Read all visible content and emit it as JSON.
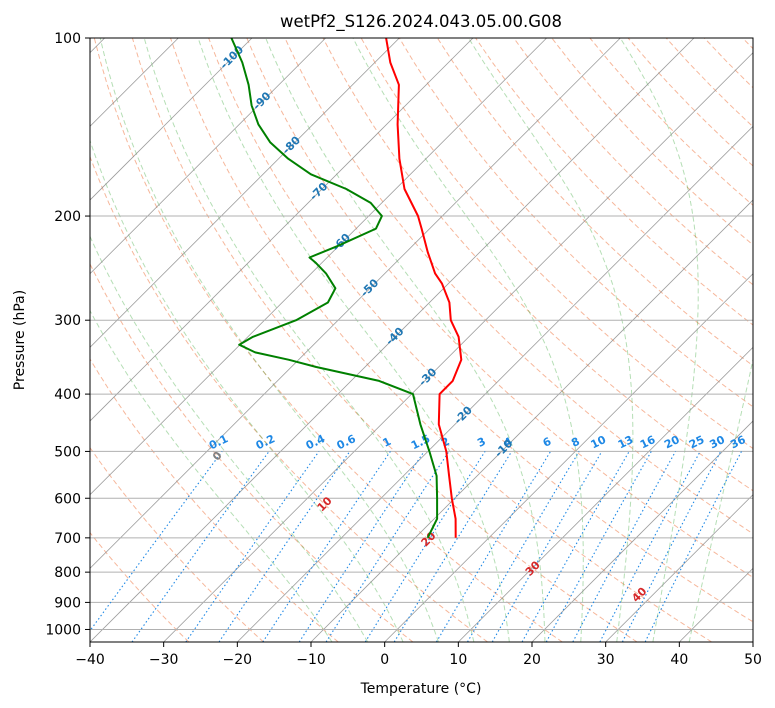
{
  "chart_data": {
    "type": "line",
    "chart_kind": "skew-T log-P diagram",
    "title": "wetPf2_S126.2024.043.05.00.G08",
    "xlabel": "Temperature (°C)",
    "ylabel": "Pressure (hPa)",
    "xlim": [
      -40,
      50
    ],
    "ylim": [
      1050,
      100
    ],
    "y_scale": "log",
    "x_ticks": [
      -40,
      -30,
      -20,
      -10,
      0,
      10,
      20,
      30,
      40,
      50
    ],
    "y_ticks": [
      1000,
      900,
      800,
      700,
      600,
      500,
      400,
      300,
      200,
      100
    ],
    "grid": true,
    "legend": "none",
    "colors": {
      "temperature": "#ff0000",
      "dewpoint": "#008000",
      "dry_adiabat": "#f4a582",
      "moist_adiabat": "#2ca02c",
      "mixing_ratio": "#1e88e5",
      "isotherm_label": "#1f77b4",
      "dry_adiabat_label": "#d62728",
      "grid": "#b0b0b0"
    },
    "series": [
      {
        "key": "temperature",
        "p": [
          700,
          650,
          600,
          550,
          500,
          450,
          400,
          380,
          350,
          320,
          300,
          280,
          260,
          250,
          230,
          210,
          200,
          180,
          160,
          140,
          120,
          110,
          100
        ],
        "t": [
          -4.5,
          -7.1,
          -10.4,
          -13.8,
          -17.5,
          -22.2,
          -26.2,
          -26.2,
          -27.9,
          -31.4,
          -34.7,
          -37.3,
          -40.9,
          -43.2,
          -47.1,
          -51.1,
          -53.3,
          -58.8,
          -63.6,
          -68.5,
          -73.7,
          -77.9,
          -81.8
        ]
      },
      {
        "key": "dewpoint",
        "p": [
          700,
          650,
          600,
          550,
          500,
          450,
          400,
          380,
          360,
          350,
          340,
          330,
          320,
          300,
          280,
          265,
          250,
          240,
          235,
          225,
          210,
          200,
          190,
          180,
          170,
          160,
          150,
          140,
          130,
          120,
          110,
          100
        ],
        "t": [
          -8.3,
          -9.6,
          -12.4,
          -15.5,
          -19.8,
          -24.7,
          -29.8,
          -36.2,
          -46.6,
          -51.3,
          -56.9,
          -60.1,
          -59.3,
          -55.7,
          -53.8,
          -54.7,
          -58.0,
          -60.8,
          -62.4,
          -60.2,
          -57.3,
          -58.2,
          -61.5,
          -66.7,
          -73.5,
          -78.7,
          -83.4,
          -87.4,
          -90.9,
          -94.1,
          -98.0,
          -102.8
        ]
      }
    ],
    "isotherm_labels": [
      "-100",
      "-90",
      "-80",
      "-70",
      "-60",
      "-50",
      "-40",
      "-30",
      "-20",
      "-10"
    ],
    "mixing_ratio_labels": [
      "0.1",
      "0.2",
      "0.4",
      "0.6",
      "1",
      "1.5",
      "2",
      "3",
      "4",
      "6",
      "8",
      "10",
      "13",
      "16",
      "20",
      "25",
      "30",
      "36"
    ],
    "dry_adiabat_labels": [
      "0",
      "10",
      "20",
      "30",
      "40"
    ]
  }
}
